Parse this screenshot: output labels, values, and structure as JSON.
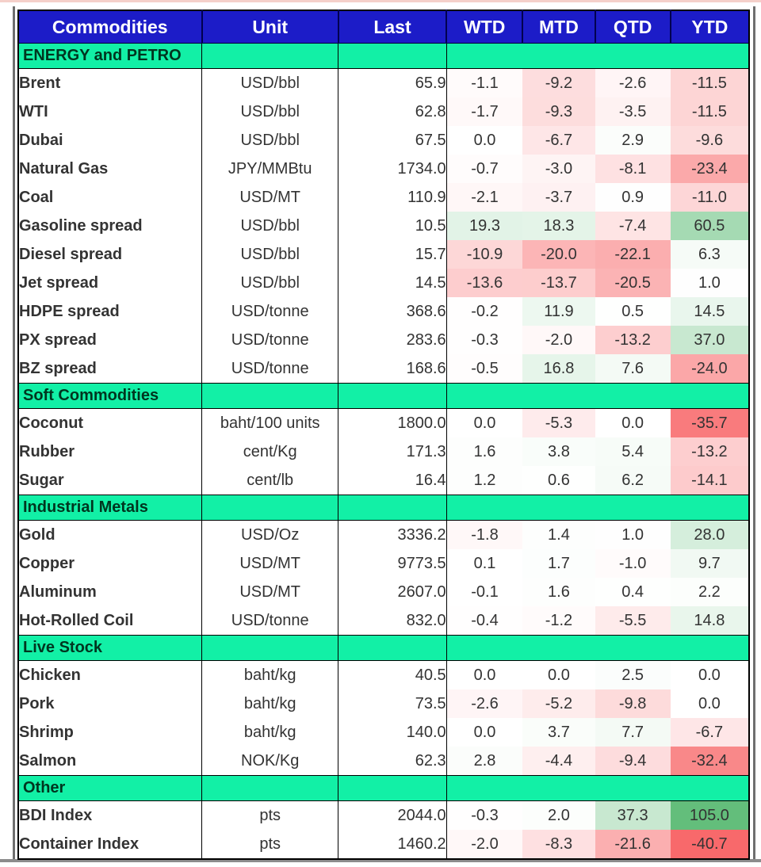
{
  "colors": {
    "header_bg": "#1C1CC8",
    "header_divider": "#00004F",
    "header_text": "#FFFFFF",
    "section_bg": "#12F0A6",
    "section_text": "#00351F",
    "grid": "#000000",
    "value_text": "#333333"
  },
  "chart_data": {
    "type": "table",
    "columns": [
      "Commodities",
      "Unit",
      "Last",
      "WTD",
      "MTD",
      "QTD",
      "YTD"
    ],
    "color_scale": {
      "min": -40.7,
      "mid": 0,
      "max": 105,
      "min_color": "#F8696B",
      "mid_color": "#FFFFFF",
      "max_color": "#63BE7B"
    },
    "sections": [
      {
        "label": "ENERGY and PETRO",
        "rows": [
          {
            "name": "Brent",
            "unit": "USD/bbl",
            "last": "65.9",
            "wtd": "-1.1",
            "mtd": "-9.2",
            "qtd": "-2.6",
            "ytd": "-11.5"
          },
          {
            "name": "WTI",
            "unit": "USD/bbl",
            "last": "62.8",
            "wtd": "-1.7",
            "mtd": "-9.3",
            "qtd": "-3.5",
            "ytd": "-11.5"
          },
          {
            "name": "Dubai",
            "unit": "USD/bbl",
            "last": "67.5",
            "wtd": "0.0",
            "mtd": "-6.7",
            "qtd": "2.9",
            "ytd": "-9.6"
          },
          {
            "name": "Natural Gas",
            "unit": "JPY/MMBtu",
            "last": "1734.0",
            "wtd": "-0.7",
            "mtd": "-3.0",
            "qtd": "-8.1",
            "ytd": "-23.4"
          },
          {
            "name": "Coal",
            "unit": "USD/MT",
            "last": "110.9",
            "wtd": "-2.1",
            "mtd": "-3.7",
            "qtd": "0.9",
            "ytd": "-11.0"
          },
          {
            "name": "Gasoline spread",
            "unit": "USD/bbl",
            "last": "10.5",
            "wtd": "19.3",
            "mtd": "18.3",
            "qtd": "-7.4",
            "ytd": "60.5"
          },
          {
            "name": "Diesel spread",
            "unit": "USD/bbl",
            "last": "15.7",
            "wtd": "-10.9",
            "mtd": "-20.0",
            "qtd": "-22.1",
            "ytd": "6.3"
          },
          {
            "name": "Jet spread",
            "unit": "USD/bbl",
            "last": "14.5",
            "wtd": "-13.6",
            "mtd": "-13.7",
            "qtd": "-20.5",
            "ytd": "1.0"
          },
          {
            "name": "HDPE spread",
            "unit": "USD/tonne",
            "last": "368.6",
            "wtd": "-0.2",
            "mtd": "11.9",
            "qtd": "0.5",
            "ytd": "14.5"
          },
          {
            "name": "PX spread",
            "unit": "USD/tonne",
            "last": "283.6",
            "wtd": "-0.3",
            "mtd": "-2.0",
            "qtd": "-13.2",
            "ytd": "37.0"
          },
          {
            "name": "BZ spread",
            "unit": "USD/tonne",
            "last": "168.6",
            "wtd": "-0.5",
            "mtd": "16.8",
            "qtd": "7.6",
            "ytd": "-24.0"
          }
        ]
      },
      {
        "label": "Soft Commodities",
        "rows": [
          {
            "name": "Coconut",
            "unit": "baht/100 units",
            "last": "1800.0",
            "wtd": "0.0",
            "mtd": "-5.3",
            "qtd": "0.0",
            "ytd": "-35.7"
          },
          {
            "name": "Rubber",
            "unit": "cent/Kg",
            "last": "171.3",
            "wtd": "1.6",
            "mtd": "3.8",
            "qtd": "5.4",
            "ytd": "-13.2"
          },
          {
            "name": "Sugar",
            "unit": "cent/lb",
            "last": "16.4",
            "wtd": "1.2",
            "mtd": "0.6",
            "qtd": "6.2",
            "ytd": "-14.1"
          }
        ]
      },
      {
        "label": "Industrial Metals",
        "rows": [
          {
            "name": "Gold",
            "unit": "USD/Oz",
            "last": "3336.2",
            "wtd": "-1.8",
            "mtd": "1.4",
            "qtd": "1.0",
            "ytd": "28.0"
          },
          {
            "name": "Copper",
            "unit": "USD/MT",
            "last": "9773.5",
            "wtd": "0.1",
            "mtd": "1.7",
            "qtd": "-1.0",
            "ytd": "9.7"
          },
          {
            "name": "Aluminum",
            "unit": "USD/MT",
            "last": "2607.0",
            "wtd": "-0.1",
            "mtd": "1.6",
            "qtd": "0.4",
            "ytd": "2.2"
          },
          {
            "name": "Hot-Rolled Coil",
            "unit": "USD/tonne",
            "last": "832.0",
            "wtd": "-0.4",
            "mtd": "-1.2",
            "qtd": "-5.5",
            "ytd": "14.8"
          }
        ]
      },
      {
        "label": "Live Stock",
        "rows": [
          {
            "name": "Chicken",
            "unit": "baht/kg",
            "last": "40.5",
            "wtd": "0.0",
            "mtd": "0.0",
            "qtd": "2.5",
            "ytd": "0.0"
          },
          {
            "name": "Pork",
            "unit": "baht/kg",
            "last": "73.5",
            "wtd": "-2.6",
            "mtd": "-5.2",
            "qtd": "-9.8",
            "ytd": "0.0"
          },
          {
            "name": "Shrimp",
            "unit": "baht/kg",
            "last": "140.0",
            "wtd": "0.0",
            "mtd": "3.7",
            "qtd": "7.7",
            "ytd": "-6.7"
          },
          {
            "name": "Salmon",
            "unit": "NOK/Kg",
            "last": "62.3",
            "wtd": "2.8",
            "mtd": "-4.4",
            "qtd": "-9.4",
            "ytd": "-32.4"
          }
        ]
      },
      {
        "label": "Other",
        "rows": [
          {
            "name": "BDI Index",
            "unit": "pts",
            "last": "2044.0",
            "wtd": "-0.3",
            "mtd": "2.0",
            "qtd": "37.3",
            "ytd": "105.0"
          },
          {
            "name": "Container Index",
            "unit": "pts",
            "last": "1460.2",
            "wtd": "-2.0",
            "mtd": "-8.3",
            "qtd": "-21.6",
            "ytd": "-40.7"
          }
        ]
      }
    ]
  }
}
